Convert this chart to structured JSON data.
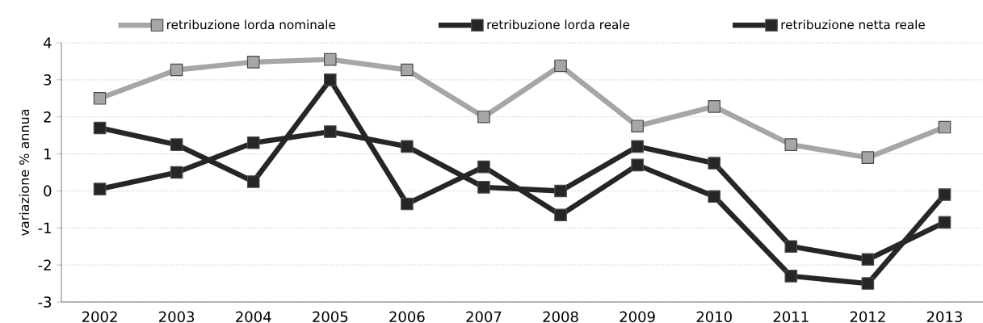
{
  "chart_data": {
    "type": "line",
    "ylabel": "variazione % annua",
    "categories": [
      "2002",
      "2003",
      "2004",
      "2005",
      "2006",
      "2007",
      "2008",
      "2009",
      "2010",
      "2011",
      "2012",
      "2013"
    ],
    "series": [
      {
        "name": "retribuzione lorda nominale",
        "color": "#a6a6a6",
        "values": [
          2.5,
          3.27,
          3.48,
          3.55,
          3.27,
          2.0,
          3.38,
          1.75,
          2.28,
          1.25,
          0.9,
          1.72
        ]
      },
      {
        "name": "retribuzione lorda reale",
        "color": "#262626",
        "values": [
          0.05,
          0.5,
          1.3,
          1.6,
          1.2,
          0.1,
          0.0,
          1.2,
          0.75,
          -1.5,
          -1.85,
          -0.85
        ]
      },
      {
        "name": "retribuzione netta reale",
        "color": "#262626",
        "values": [
          1.7,
          1.25,
          0.25,
          3.0,
          -0.35,
          0.65,
          -0.65,
          0.7,
          -0.15,
          -2.3,
          -2.5,
          -0.1
        ]
      }
    ],
    "ylim": [
      -3,
      4
    ],
    "yticks": [
      -3,
      -2,
      -1,
      0,
      1,
      2,
      3,
      4
    ],
    "grid": "y",
    "legend": "top",
    "marker": "square",
    "line_style": "solid"
  }
}
